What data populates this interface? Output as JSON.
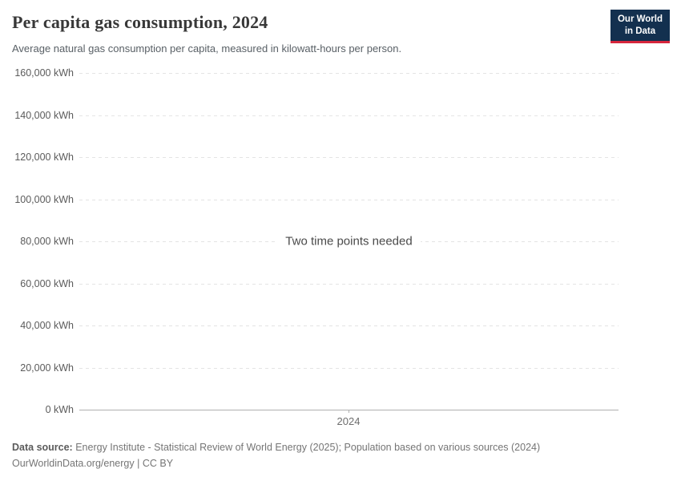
{
  "header": {
    "title": "Per capita gas consumption, 2024",
    "subtitle": "Average natural gas consumption per capita, measured in kilowatt-hours per person."
  },
  "logo": {
    "line1": "Our World",
    "line2": "in Data"
  },
  "chart_data": {
    "type": "line",
    "title": "Per capita gas consumption, 2024",
    "unit": "kWh",
    "ylim": [
      0,
      160000
    ],
    "y_tick_interval": 20000,
    "y_ticks": [
      {
        "value": 160000,
        "label": "160,000 kWh"
      },
      {
        "value": 140000,
        "label": "140,000 kWh"
      },
      {
        "value": 120000,
        "label": "120,000 kWh"
      },
      {
        "value": 100000,
        "label": "100,000 kWh"
      },
      {
        "value": 80000,
        "label": "80,000 kWh"
      },
      {
        "value": 60000,
        "label": "60,000 kWh"
      },
      {
        "value": 40000,
        "label": "40,000 kWh"
      },
      {
        "value": 20000,
        "label": "20,000 kWh"
      },
      {
        "value": 0,
        "label": "0 kWh"
      }
    ],
    "x_ticks": [
      "2024"
    ],
    "series": [],
    "empty_message": "Two time points needed",
    "grid": "horizontal-dashed",
    "legend": "none"
  },
  "footer": {
    "datasource_label": "Data source:",
    "datasource_text": " Energy Institute - Statistical Review of World Energy (2025); Population based on various sources (2024)",
    "license_url": "OurWorldinData.org/energy",
    "license_separator": " | ",
    "license_name": "CC BY"
  },
  "colors": {
    "logo_bg": "#13304f",
    "logo_accent": "#d7263d",
    "grid": "#e4e4e4",
    "axis": "#b0b0b0",
    "title": "#383838",
    "subtitle": "#596066",
    "tick_label": "#5b5b5b",
    "footer_gray": "#757575"
  }
}
